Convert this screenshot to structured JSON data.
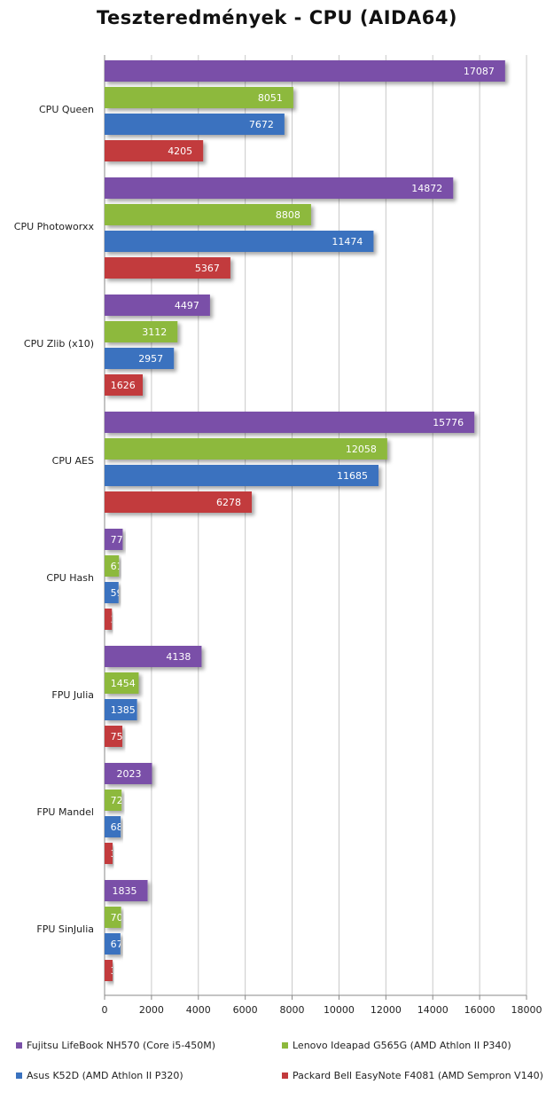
{
  "chart_data": {
    "type": "bar",
    "orientation": "horizontal",
    "title": "Teszteredmények - CPU (AIDA64)",
    "categories": [
      "CPU Queen",
      "CPU Photoworxx",
      "CPU Zlib (x10)",
      "CPU AES",
      "CPU Hash",
      "FPU Julia",
      "FPU Mandel",
      "FPU SinJulia"
    ],
    "series": [
      {
        "name": "Fujitsu LifeBook NH570 (Core i5-450M)",
        "color": "#7a50a8",
        "values": [
          17087,
          14872,
          4497,
          15776,
          773,
          4138,
          2023,
          1835
        ]
      },
      {
        "name": "Lenovo Ideapad G565G (AMD Athlon II P340)",
        "color": "#8db93c",
        "values": [
          8051,
          8808,
          3112,
          12058,
          615,
          1454,
          725,
          705
        ]
      },
      {
        "name": "Asus K52D (AMD Athlon II P320)",
        "color": "#3a72bf",
        "values": [
          7672,
          11474,
          2957,
          11685,
          595,
          1385,
          685,
          675
        ]
      },
      {
        "name": "Packard Bell EasyNote F4081 (AMD Sempron V140)",
        "color": "#c23a3c",
        "values": [
          4205,
          5367,
          1626,
          6278,
          310,
          757,
          340,
          340
        ]
      }
    ],
    "xlim": [
      0,
      18000
    ],
    "xticks": [
      "0",
      "2000",
      "4000",
      "6000",
      "8000",
      "10000",
      "12000",
      "14000",
      "16000",
      "18000"
    ],
    "grid": true,
    "legend_position": "bottom"
  }
}
